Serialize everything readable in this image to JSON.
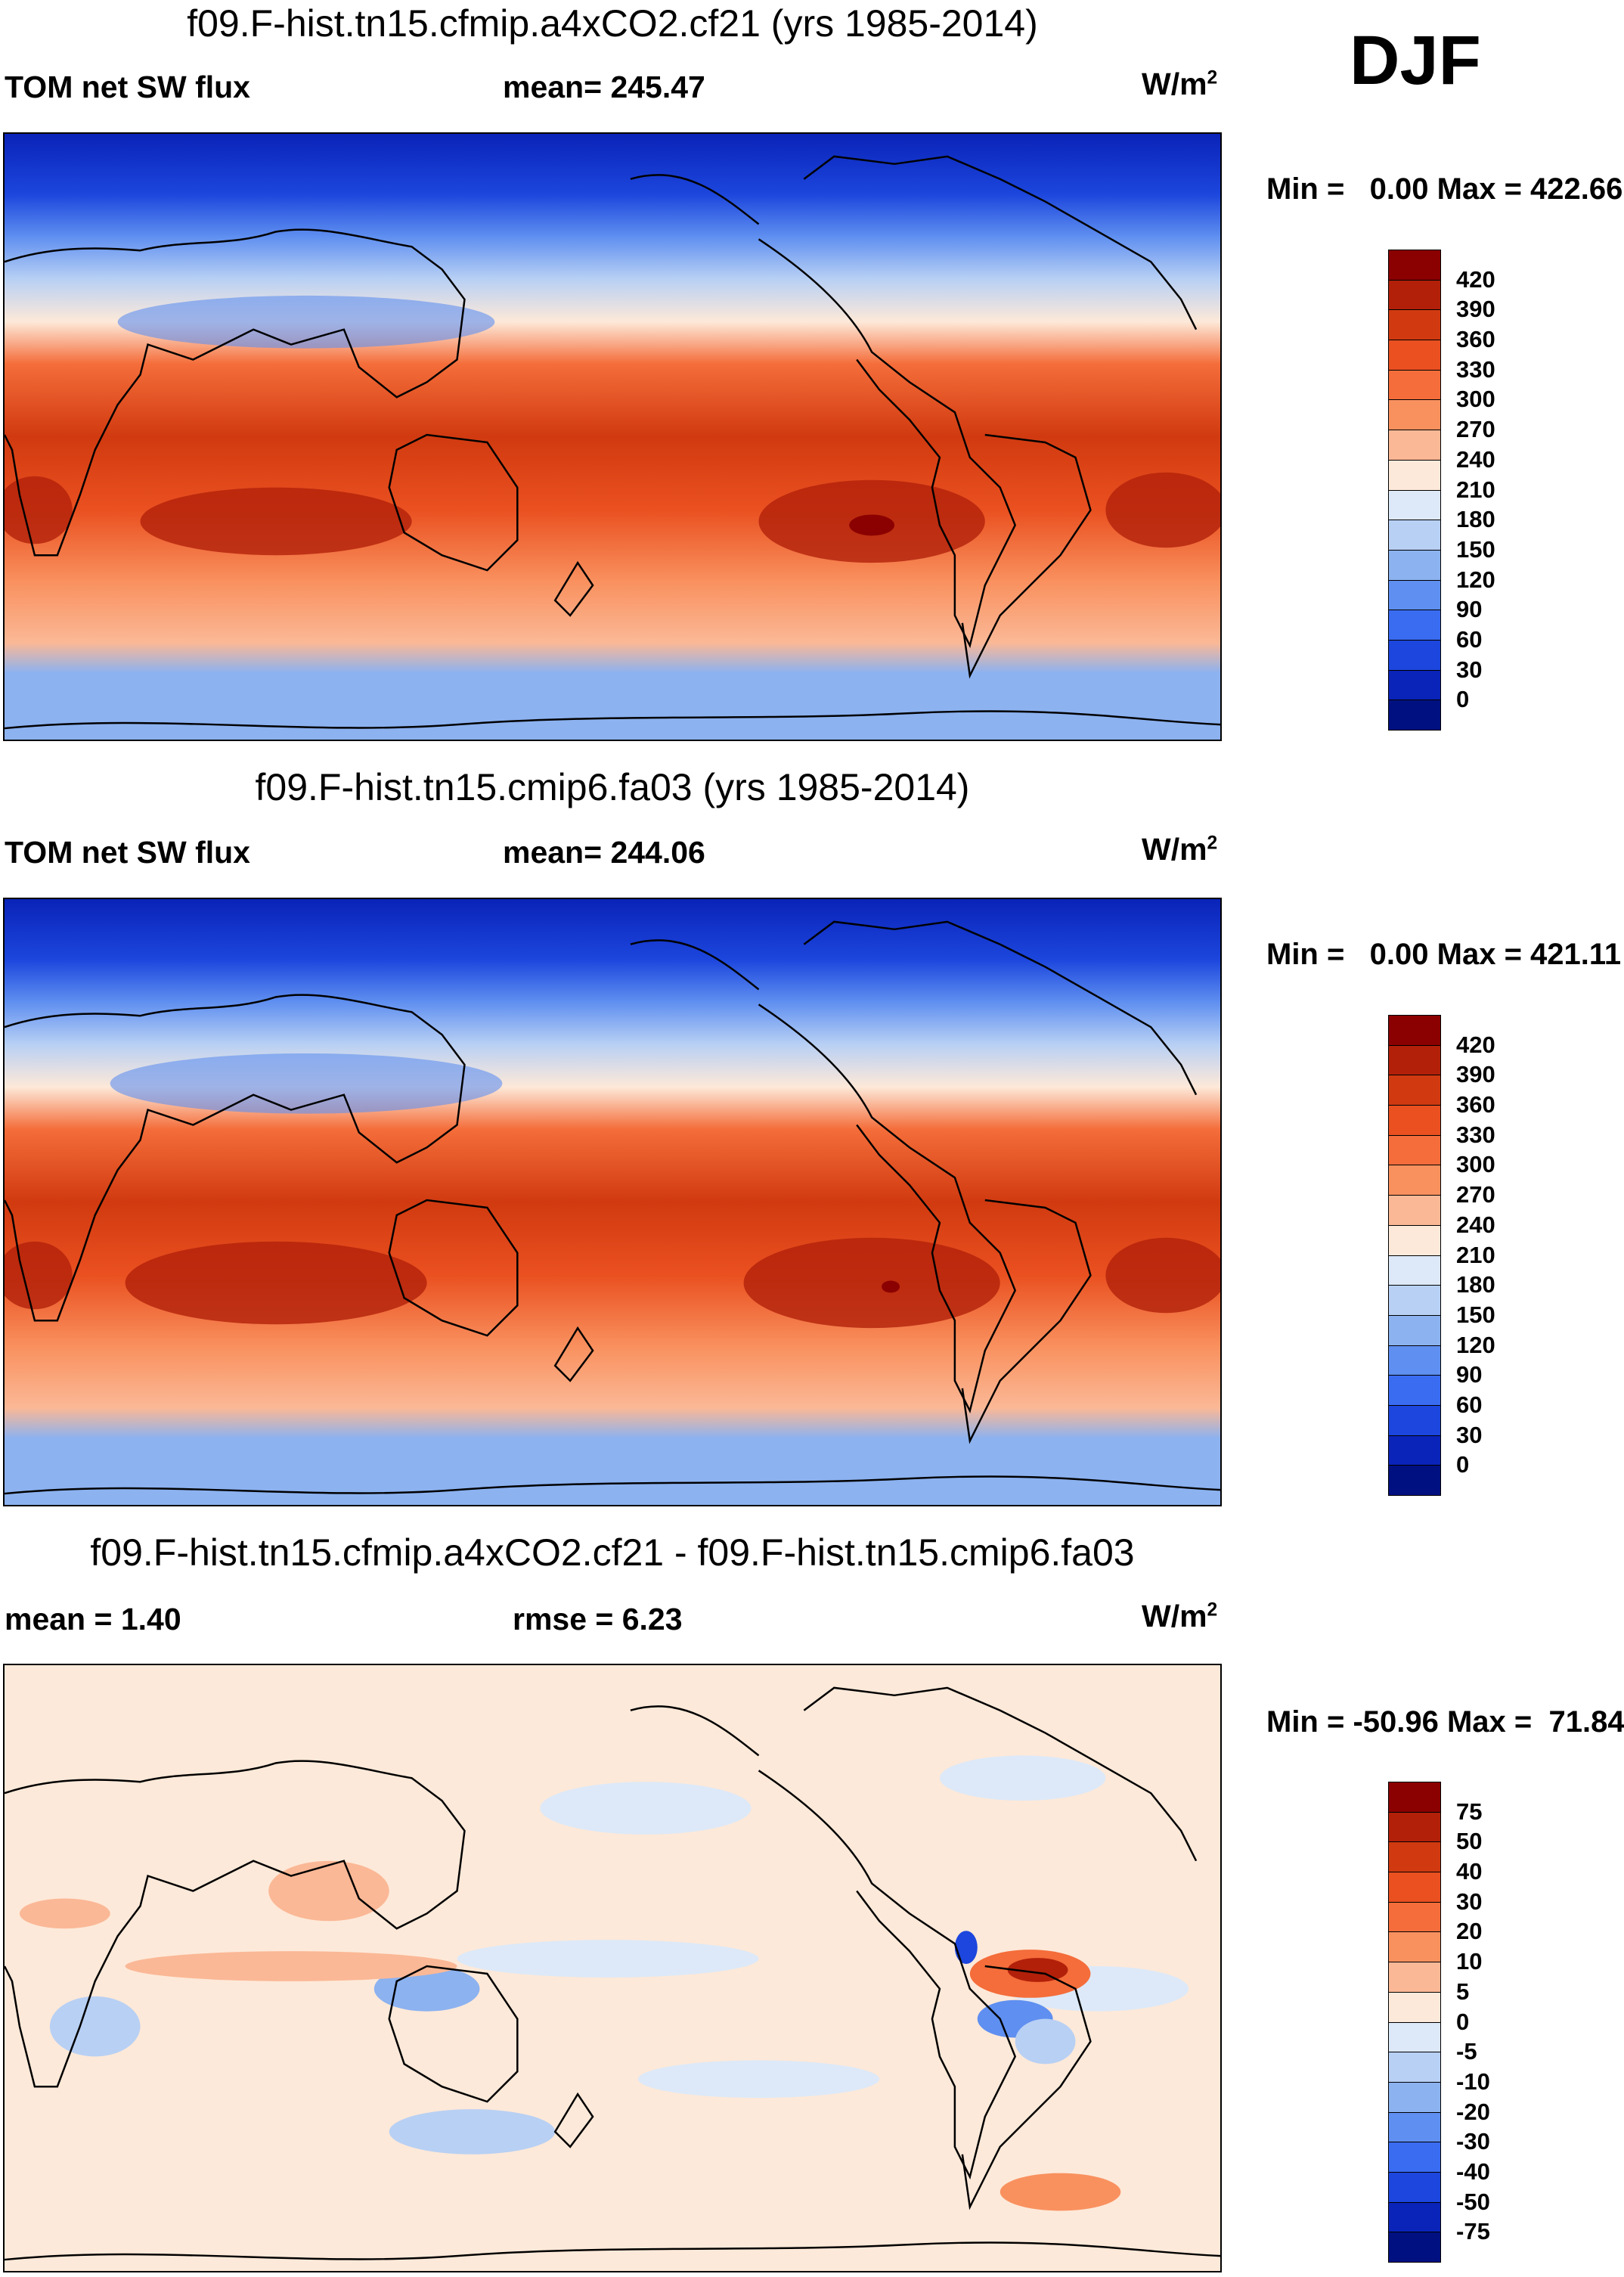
{
  "season": "DJF",
  "units": "W/m",
  "units_sup": "2",
  "panels": [
    {
      "title": "f09.F-hist.tn15.cfmip.a4xCO2.cf21 (yrs 1985-2014)",
      "left_label": "TOM net SW flux",
      "center_label": "mean= 245.47",
      "minmax": "Min =   0.00 Max = 422.66"
    },
    {
      "title": "f09.F-hist.tn15.cmip6.fa03 (yrs 1985-2014)",
      "left_label": "TOM net SW flux",
      "center_label": "mean= 244.06",
      "minmax": "Min =   0.00 Max = 421.11"
    },
    {
      "title": "f09.F-hist.tn15.cfmip.a4xCO2.cf21 - f09.F-hist.tn15.cmip6.fa03",
      "left_label": "mean =   1.40",
      "center_label": "rmse =   6.23",
      "minmax": "Min = -50.96 Max =  71.84"
    }
  ],
  "colorbar_abs": {
    "labels": [
      "420",
      "390",
      "360",
      "330",
      "300",
      "270",
      "240",
      "210",
      "180",
      "150",
      "120",
      "90",
      "60",
      "30",
      "0"
    ],
    "colors": [
      "#8b0000",
      "#b2200a",
      "#d13a10",
      "#ea5020",
      "#f46d3a",
      "#f9915f",
      "#fbb896",
      "#fde9d9",
      "#dde9f8",
      "#b8d0f4",
      "#8cb2f0",
      "#5f8ff0",
      "#3a6cf2",
      "#1c46dd",
      "#0a23b8",
      "#001080"
    ]
  },
  "colorbar_diff": {
    "labels": [
      "75",
      "50",
      "40",
      "30",
      "20",
      "10",
      "5",
      "0",
      "-5",
      "-10",
      "-20",
      "-30",
      "-40",
      "-50",
      "-75"
    ],
    "colors": [
      "#8b0000",
      "#b2200a",
      "#d13a10",
      "#ea5020",
      "#f46d3a",
      "#f9915f",
      "#fbb896",
      "#fde9d9",
      "#dde9f8",
      "#b8d0f4",
      "#8cb2f0",
      "#5f8ff0",
      "#3a6cf2",
      "#1c46dd",
      "#0a23b8",
      "#001080"
    ]
  }
}
